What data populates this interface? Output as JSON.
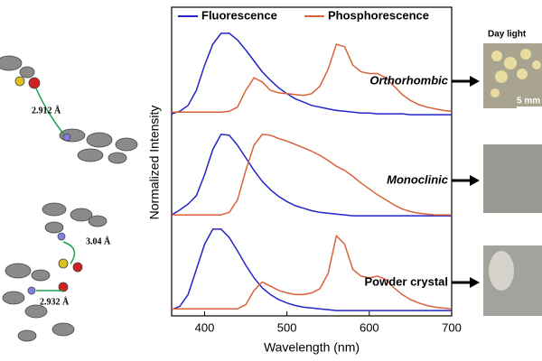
{
  "chart_data": {
    "type": "line",
    "x_label": "Wavelength (nm)",
    "y_label": "Normalized Intensity",
    "x": [
      360,
      370,
      380,
      390,
      400,
      410,
      420,
      430,
      440,
      450,
      460,
      470,
      480,
      490,
      500,
      510,
      520,
      530,
      540,
      550,
      560,
      570,
      580,
      590,
      600,
      610,
      620,
      630,
      640,
      650,
      660,
      670,
      680,
      690,
      700
    ],
    "xlim": [
      360,
      700
    ],
    "xticks": [
      400,
      500,
      600,
      700
    ],
    "ylim": [
      0,
      1
    ],
    "series": [
      {
        "name": "Fluorescence",
        "color": "#2323c8"
      },
      {
        "name": "Phosphorescence",
        "color": "#d9623b"
      }
    ],
    "panels": [
      {
        "label": "Orthorhombic",
        "values": [
          [
            0.02,
            0.05,
            0.12,
            0.3,
            0.6,
            0.85,
            0.98,
            0.98,
            0.9,
            0.78,
            0.65,
            0.52,
            0.42,
            0.33,
            0.26,
            0.2,
            0.16,
            0.12,
            0.1,
            0.08,
            0.06,
            0.05,
            0.04,
            0.03,
            0.03,
            0.02,
            0.02,
            0.02,
            0.02,
            0.01,
            0.01,
            0.01,
            0.01,
            0.01,
            0.01
          ],
          [
            0.04,
            0.04,
            0.04,
            0.04,
            0.04,
            0.04,
            0.04,
            0.05,
            0.1,
            0.3,
            0.45,
            0.4,
            0.3,
            0.27,
            0.26,
            0.25,
            0.24,
            0.26,
            0.35,
            0.55,
            0.85,
            0.82,
            0.6,
            0.52,
            0.5,
            0.5,
            0.45,
            0.35,
            0.25,
            0.18,
            0.13,
            0.1,
            0.08,
            0.06,
            0.05
          ]
        ]
      },
      {
        "label": "Monoclinic",
        "values": [
          [
            0.02,
            0.08,
            0.15,
            0.25,
            0.5,
            0.8,
            0.98,
            0.97,
            0.85,
            0.7,
            0.55,
            0.42,
            0.32,
            0.24,
            0.18,
            0.13,
            0.1,
            0.07,
            0.05,
            0.04,
            0.03,
            0.02,
            0.01,
            0.01,
            0.01,
            0.01,
            0.01,
            0.01,
            0.01,
            0.01,
            0.01,
            0.01,
            0.01,
            0.01,
            0.01
          ],
          [
            0.02,
            0.02,
            0.02,
            0.02,
            0.02,
            0.02,
            0.02,
            0.05,
            0.2,
            0.55,
            0.85,
            0.98,
            0.97,
            0.93,
            0.9,
            0.86,
            0.82,
            0.78,
            0.73,
            0.67,
            0.6,
            0.55,
            0.48,
            0.4,
            0.33,
            0.26,
            0.2,
            0.14,
            0.09,
            0.06,
            0.04,
            0.03,
            0.02,
            0.02,
            0.02
          ]
        ]
      },
      {
        "label": "Powder crystal",
        "values": [
          [
            0.02,
            0.06,
            0.2,
            0.5,
            0.8,
            0.98,
            0.98,
            0.88,
            0.72,
            0.55,
            0.4,
            0.28,
            0.2,
            0.14,
            0.1,
            0.07,
            0.05,
            0.04,
            0.03,
            0.02,
            0.01,
            0.01,
            0.01,
            0.01,
            0.01,
            0.01,
            0.01,
            0.01,
            0.01,
            0.01,
            0.01,
            0.01,
            0.01,
            0.01,
            0.01
          ],
          [
            0.03,
            0.03,
            0.03,
            0.03,
            0.03,
            0.03,
            0.03,
            0.03,
            0.03,
            0.08,
            0.25,
            0.35,
            0.3,
            0.25,
            0.22,
            0.2,
            0.2,
            0.22,
            0.27,
            0.45,
            0.9,
            0.8,
            0.5,
            0.42,
            0.4,
            0.42,
            0.38,
            0.28,
            0.2,
            0.14,
            0.1,
            0.07,
            0.05,
            0.04,
            0.03
          ]
        ]
      }
    ]
  },
  "structure_labels": [
    "2.912 Å",
    "3.04 Å",
    "2.932 Å"
  ],
  "photos": {
    "header": "Day light",
    "scale_bar": "5 mm"
  }
}
